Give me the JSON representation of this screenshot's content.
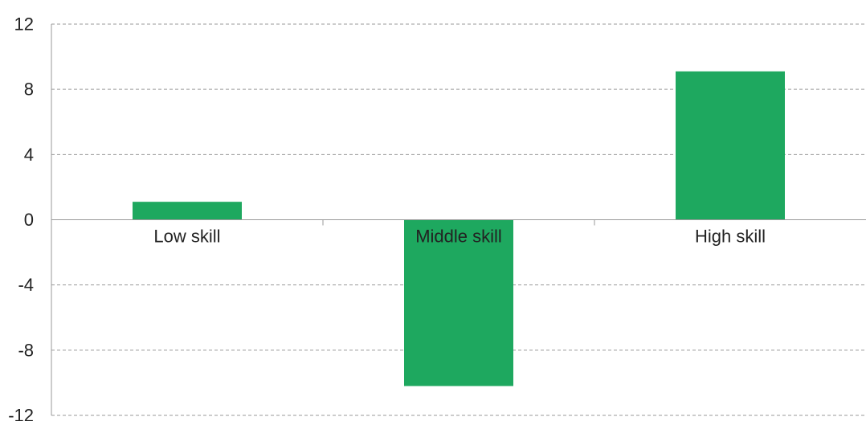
{
  "chart_data": {
    "type": "bar",
    "title": "",
    "xlabel": "",
    "ylabel": "",
    "categories": [
      "Low skill",
      "Middle skill",
      "High skill"
    ],
    "values": [
      1.1,
      -10.2,
      9.1
    ],
    "ylim": [
      -12,
      12
    ],
    "yticks": [
      12,
      8,
      4,
      0,
      -4,
      -8,
      -12
    ],
    "ytick_labels": [
      "12",
      "8",
      "4",
      "0",
      "-4",
      "-8",
      "-12"
    ],
    "grid": true,
    "legend": "none",
    "bar_color": "#1ea85f"
  }
}
